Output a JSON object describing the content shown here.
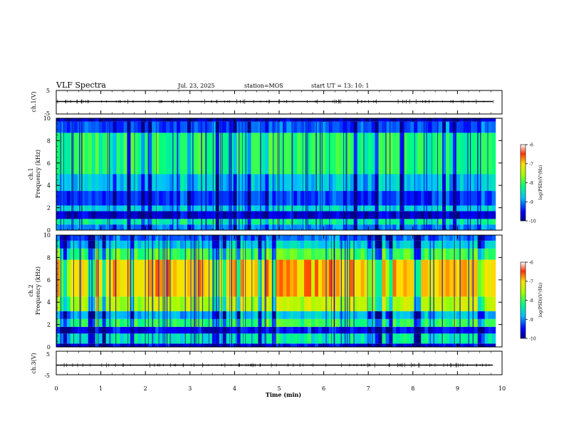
{
  "chart_data": {
    "type": "heatmap",
    "header": {
      "title": "VLF Spectra",
      "date": "Jul. 23, 2025",
      "station": "station=MOS",
      "start_ut": "start UT =  13: 10: 1"
    },
    "time_axis": {
      "label": "Time (min)",
      "range": [
        0,
        10
      ],
      "ticks": [
        "0",
        "1",
        "2",
        "3",
        "4",
        "5",
        "6",
        "7",
        "8",
        "9",
        "10"
      ],
      "data_end_min": 9.85
    },
    "waveform_ch1": {
      "ylabel": "ch.1(V)",
      "range": [
        -5,
        5
      ],
      "ticks": [
        "5",
        "-5"
      ],
      "baseline_v": 0
    },
    "spectrogram_ch1": {
      "ylabel_top": "ch.1",
      "ylabel": "Frequency (kHz)",
      "range_khz": [
        0,
        10
      ],
      "ticks": [
        "0",
        "2",
        "4",
        "6",
        "8",
        "10"
      ],
      "colorbar": {
        "label": "log(PSD)(V²/Hz)",
        "range": [
          -10,
          -6
        ],
        "ticks": [
          "-6",
          "-7",
          "-8",
          "-9",
          "-10"
        ]
      },
      "description_levels": {
        "bands_khz": [
          [
            0,
            0.5
          ],
          [
            0.5,
            1.0
          ],
          [
            1.0,
            1.7
          ],
          [
            1.7,
            2.2
          ],
          [
            2.2,
            3.5
          ],
          [
            3.5,
            5.0
          ],
          [
            5.0,
            8.7
          ],
          [
            8.7,
            9.7
          ],
          [
            9.7,
            10
          ]
        ],
        "log_psd": [
          -9.0,
          -8.3,
          -9.7,
          -8.6,
          -9.3,
          -8.7,
          -8.1,
          -9.2,
          -9.8
        ]
      }
    },
    "spectrogram_ch2": {
      "ylabel_top": "ch.2",
      "ylabel": "Frequency (kHz)",
      "range_khz": [
        0,
        10
      ],
      "ticks": [
        "0",
        "2",
        "4",
        "6",
        "8",
        "10"
      ],
      "colorbar": {
        "label": "log(PSD)(V²/Hz)",
        "range": [
          -10,
          -6
        ],
        "ticks": [
          "-6",
          "-7",
          "-8",
          "-9",
          "-10"
        ]
      },
      "description_levels": {
        "bands_khz": [
          [
            0,
            0.3
          ],
          [
            0.3,
            1.2
          ],
          [
            1.2,
            1.8
          ],
          [
            1.8,
            2.5
          ],
          [
            2.5,
            3.2
          ],
          [
            3.2,
            4.5
          ],
          [
            4.5,
            7.8
          ],
          [
            7.8,
            8.8
          ],
          [
            8.8,
            9.5
          ],
          [
            9.5,
            10
          ]
        ],
        "log_psd": [
          -9.6,
          -8.4,
          -9.5,
          -8.0,
          -8.7,
          -7.4,
          -6.9,
          -7.9,
          -8.6,
          -9.1
        ]
      }
    },
    "waveform_ch3": {
      "ylabel": "ch.3(V)",
      "range": [
        -5,
        5
      ],
      "ticks": [
        "5",
        "-5"
      ],
      "baseline_v": 0
    }
  }
}
